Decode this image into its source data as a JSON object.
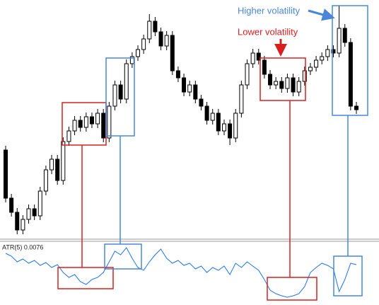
{
  "chart_data": {
    "type": "candlestick",
    "annotations": {
      "higher": "Higher volatility",
      "lower": "Lower volatility"
    },
    "up_color": "#ffffff",
    "down_color": "#000000",
    "ylim": [
      0,
      338
    ],
    "candles": [
      [
        126,
        132,
        52,
        58
      ],
      [
        58,
        64,
        32,
        38
      ],
      [
        38,
        44,
        7,
        13
      ],
      [
        13,
        34,
        7,
        28
      ],
      [
        28,
        49,
        22,
        43
      ],
      [
        43,
        49,
        27,
        33
      ],
      [
        33,
        74,
        27,
        68
      ],
      [
        68,
        104,
        62,
        98
      ],
      [
        98,
        119,
        92,
        113
      ],
      [
        113,
        119,
        77,
        83
      ],
      [
        83,
        144,
        77,
        138
      ],
      [
        138,
        159,
        132,
        153
      ],
      [
        153,
        174,
        147,
        168
      ],
      [
        168,
        174,
        152,
        158
      ],
      [
        158,
        179,
        152,
        173
      ],
      [
        173,
        179,
        157,
        163
      ],
      [
        163,
        184,
        157,
        178
      ],
      [
        178,
        184,
        137,
        143
      ],
      [
        143,
        194,
        137,
        188
      ],
      [
        188,
        224,
        182,
        218
      ],
      [
        218,
        224,
        192,
        198
      ],
      [
        198,
        254,
        192,
        248
      ],
      [
        248,
        264,
        242,
        258
      ],
      [
        258,
        274,
        252,
        268
      ],
      [
        268,
        289,
        262,
        283
      ],
      [
        283,
        318,
        277,
        308
      ],
      [
        308,
        314,
        287,
        293
      ],
      [
        293,
        299,
        267,
        273
      ],
      [
        273,
        294,
        267,
        288
      ],
      [
        288,
        294,
        232,
        238
      ],
      [
        238,
        244,
        222,
        228
      ],
      [
        228,
        234,
        202,
        208
      ],
      [
        208,
        224,
        202,
        218
      ],
      [
        218,
        224,
        192,
        198
      ],
      [
        198,
        204,
        182,
        188
      ],
      [
        188,
        194,
        162,
        168
      ],
      [
        168,
        184,
        162,
        178
      ],
      [
        178,
        184,
        147,
        153
      ],
      [
        153,
        169,
        147,
        163
      ],
      [
        163,
        169,
        133,
        143
      ],
      [
        143,
        184,
        137,
        178
      ],
      [
        178,
        224,
        172,
        218
      ],
      [
        218,
        254,
        212,
        248
      ],
      [
        248,
        269,
        242,
        263
      ],
      [
        263,
        269,
        247,
        253
      ],
      [
        253,
        259,
        227,
        233
      ],
      [
        233,
        239,
        212,
        218
      ],
      [
        218,
        229,
        212,
        223
      ],
      [
        223,
        229,
        207,
        213
      ],
      [
        213,
        234,
        207,
        228
      ],
      [
        228,
        234,
        202,
        208
      ],
      [
        208,
        229,
        202,
        223
      ],
      [
        223,
        244,
        217,
        238
      ],
      [
        238,
        249,
        232,
        243
      ],
      [
        243,
        259,
        237,
        253
      ],
      [
        253,
        264,
        247,
        258
      ],
      [
        258,
        274,
        252,
        268
      ],
      [
        268,
        274,
        257,
        263
      ],
      [
        263,
        330,
        257,
        298
      ],
      [
        298,
        304,
        272,
        278
      ],
      [
        278,
        284,
        182,
        188
      ],
      [
        188,
        194,
        177,
        183
      ]
    ],
    "atr": {
      "label": "ATR(5) 0.0076",
      "color": "#1e73e6",
      "ylim": [
        0,
        86
      ],
      "values": [
        73,
        69,
        61,
        65,
        59,
        63,
        56,
        60,
        53,
        57,
        46,
        39,
        43,
        33,
        29,
        36,
        39,
        46,
        61,
        76,
        71,
        81,
        66,
        53,
        49,
        61,
        71,
        79,
        66,
        59,
        63,
        56,
        59,
        51,
        55,
        46,
        53,
        49,
        55,
        43,
        59,
        53,
        61,
        55,
        49,
        36,
        21,
        16,
        13,
        11,
        13,
        16,
        26,
        46,
        53,
        59,
        56,
        51,
        19,
        36,
        59,
        57
      ]
    }
  }
}
